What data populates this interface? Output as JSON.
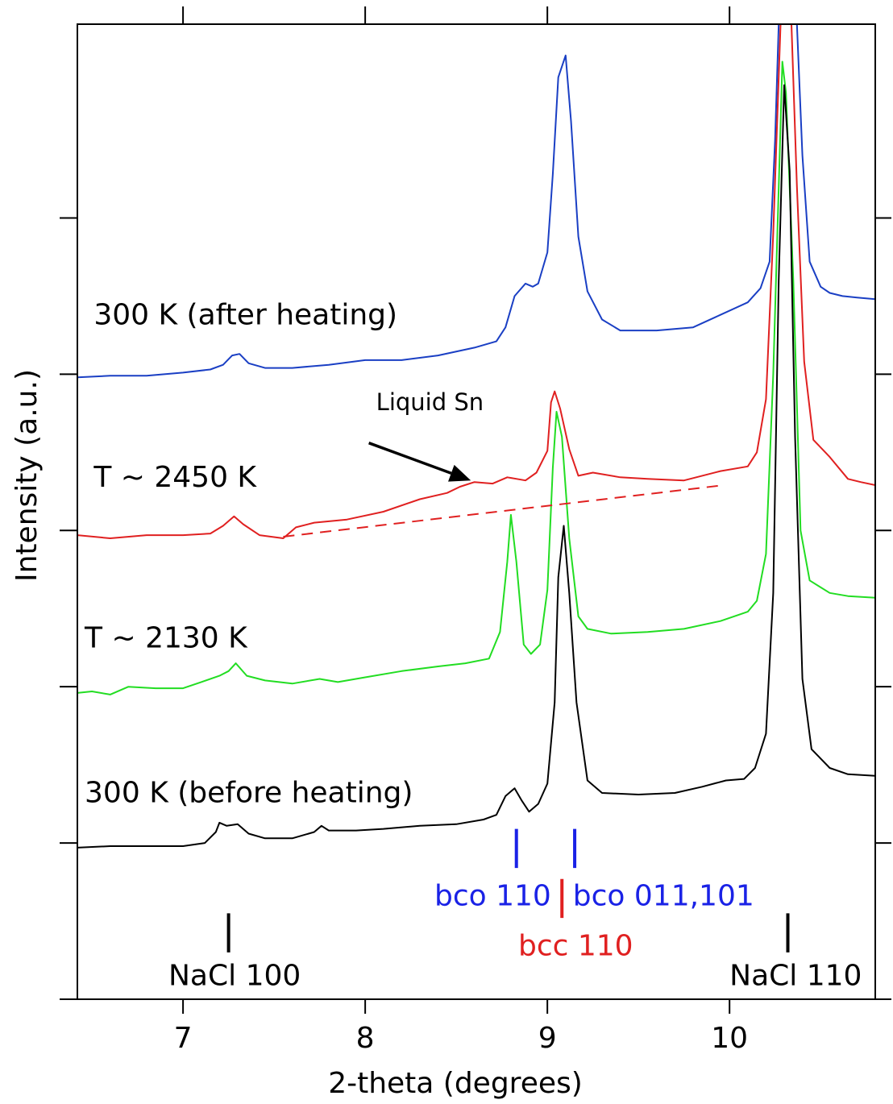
{
  "chart_data": {
    "type": "line",
    "xlabel": "2-theta (degrees)",
    "ylabel": "Intensity (a.u.)",
    "xlim": [
      6.42,
      10.8
    ],
    "ylim": [
      0,
      6.24
    ],
    "xticks": [
      7,
      8,
      9,
      10
    ],
    "yticks_unlabeled": [
      0,
      1,
      2,
      3,
      4,
      5
    ],
    "series": [
      {
        "name": "300 K (after heating)",
        "color": "#1a3fc4",
        "points": [
          [
            6.42,
            3.98
          ],
          [
            6.6,
            3.99
          ],
          [
            6.8,
            3.99
          ],
          [
            7.0,
            4.01
          ],
          [
            7.15,
            4.03
          ],
          [
            7.22,
            4.06
          ],
          [
            7.27,
            4.12
          ],
          [
            7.31,
            4.13
          ],
          [
            7.36,
            4.07
          ],
          [
            7.45,
            4.04
          ],
          [
            7.6,
            4.04
          ],
          [
            7.8,
            4.06
          ],
          [
            8.0,
            4.09
          ],
          [
            8.2,
            4.09
          ],
          [
            8.4,
            4.12
          ],
          [
            8.6,
            4.17
          ],
          [
            8.72,
            4.21
          ],
          [
            8.77,
            4.3
          ],
          [
            8.82,
            4.5
          ],
          [
            8.88,
            4.58
          ],
          [
            8.92,
            4.56
          ],
          [
            8.95,
            4.58
          ],
          [
            9.0,
            4.78
          ],
          [
            9.03,
            5.28
          ],
          [
            9.06,
            5.9
          ],
          [
            9.1,
            6.04
          ],
          [
            9.13,
            5.62
          ],
          [
            9.17,
            4.88
          ],
          [
            9.22,
            4.53
          ],
          [
            9.3,
            4.35
          ],
          [
            9.4,
            4.28
          ],
          [
            9.6,
            4.28
          ],
          [
            9.8,
            4.3
          ],
          [
            9.95,
            4.38
          ],
          [
            10.1,
            4.46
          ],
          [
            10.17,
            4.55
          ],
          [
            10.22,
            4.72
          ],
          [
            10.25,
            5.5
          ],
          [
            10.27,
            6.24
          ]
        ]
      },
      {
        "name": "300 K (after heating)",
        "color": "#1a3fc4",
        "points": [
          [
            10.37,
            6.24
          ],
          [
            10.4,
            5.4
          ],
          [
            10.44,
            4.72
          ],
          [
            10.5,
            4.56
          ],
          [
            10.55,
            4.52
          ],
          [
            10.62,
            4.5
          ],
          [
            10.7,
            4.49
          ],
          [
            10.8,
            4.48
          ]
        ]
      },
      {
        "name": "T ~ 2450 K",
        "color": "#e02020",
        "points": [
          [
            6.42,
            2.97
          ],
          [
            6.6,
            2.95
          ],
          [
            6.8,
            2.97
          ],
          [
            7.0,
            2.97
          ],
          [
            7.15,
            2.98
          ],
          [
            7.22,
            3.03
          ],
          [
            7.28,
            3.09
          ],
          [
            7.33,
            3.04
          ],
          [
            7.42,
            2.97
          ],
          [
            7.55,
            2.95
          ],
          [
            7.62,
            3.02
          ],
          [
            7.72,
            3.05
          ],
          [
            7.9,
            3.07
          ],
          [
            8.1,
            3.12
          ],
          [
            8.3,
            3.2
          ],
          [
            8.45,
            3.24
          ],
          [
            8.52,
            3.28
          ],
          [
            8.6,
            3.31
          ],
          [
            8.7,
            3.3
          ],
          [
            8.78,
            3.34
          ],
          [
            8.88,
            3.32
          ],
          [
            8.94,
            3.37
          ],
          [
            9.0,
            3.51
          ],
          [
            9.02,
            3.82
          ],
          [
            9.04,
            3.89
          ],
          [
            9.07,
            3.78
          ],
          [
            9.12,
            3.52
          ],
          [
            9.17,
            3.35
          ],
          [
            9.25,
            3.37
          ],
          [
            9.4,
            3.34
          ],
          [
            9.55,
            3.33
          ],
          [
            9.75,
            3.32
          ],
          [
            9.95,
            3.38
          ],
          [
            10.1,
            3.41
          ],
          [
            10.15,
            3.5
          ],
          [
            10.2,
            3.84
          ],
          [
            10.24,
            4.9
          ],
          [
            10.28,
            6.24
          ]
        ]
      },
      {
        "name": "T ~ 2450 K",
        "color": "#e02020",
        "points": [
          [
            10.34,
            6.24
          ],
          [
            10.37,
            5.2
          ],
          [
            10.41,
            4.08
          ],
          [
            10.46,
            3.58
          ],
          [
            10.55,
            3.47
          ],
          [
            10.65,
            3.33
          ],
          [
            10.72,
            3.31
          ],
          [
            10.8,
            3.29
          ]
        ]
      },
      {
        "name": "T ~ 2130 K",
        "color": "#22dd22",
        "points": [
          [
            6.42,
            1.96
          ],
          [
            6.5,
            1.97
          ],
          [
            6.6,
            1.95
          ],
          [
            6.7,
            2.0
          ],
          [
            6.85,
            1.99
          ],
          [
            7.0,
            1.99
          ],
          [
            7.1,
            2.03
          ],
          [
            7.2,
            2.07
          ],
          [
            7.25,
            2.1
          ],
          [
            7.29,
            2.15
          ],
          [
            7.35,
            2.07
          ],
          [
            7.45,
            2.04
          ],
          [
            7.6,
            2.02
          ],
          [
            7.75,
            2.05
          ],
          [
            7.85,
            2.03
          ],
          [
            8.0,
            2.06
          ],
          [
            8.2,
            2.1
          ],
          [
            8.4,
            2.13
          ],
          [
            8.55,
            2.15
          ],
          [
            8.68,
            2.18
          ],
          [
            8.74,
            2.35
          ],
          [
            8.78,
            2.8
          ],
          [
            8.8,
            3.1
          ],
          [
            8.83,
            2.8
          ],
          [
            8.87,
            2.27
          ],
          [
            8.91,
            2.21
          ],
          [
            8.96,
            2.27
          ],
          [
            9.0,
            2.62
          ],
          [
            9.03,
            3.4
          ],
          [
            9.05,
            3.76
          ],
          [
            9.08,
            3.6
          ],
          [
            9.12,
            2.95
          ],
          [
            9.17,
            2.45
          ],
          [
            9.22,
            2.37
          ],
          [
            9.35,
            2.34
          ],
          [
            9.55,
            2.35
          ],
          [
            9.75,
            2.37
          ],
          [
            9.95,
            2.42
          ],
          [
            10.1,
            2.48
          ],
          [
            10.15,
            2.55
          ],
          [
            10.2,
            2.85
          ],
          [
            10.24,
            4.0
          ],
          [
            10.28,
            5.6
          ],
          [
            10.29,
            6.0
          ],
          [
            10.31,
            5.8
          ],
          [
            10.35,
            4.6
          ],
          [
            10.39,
            3.0
          ],
          [
            10.44,
            2.68
          ],
          [
            10.55,
            2.6
          ],
          [
            10.65,
            2.58
          ],
          [
            10.8,
            2.57
          ]
        ]
      },
      {
        "name": "300 K (before heating)",
        "color": "#000000",
        "points": [
          [
            6.42,
            0.97
          ],
          [
            6.6,
            0.98
          ],
          [
            6.8,
            0.98
          ],
          [
            7.0,
            0.98
          ],
          [
            7.12,
            1.0
          ],
          [
            7.18,
            1.07
          ],
          [
            7.2,
            1.13
          ],
          [
            7.24,
            1.11
          ],
          [
            7.3,
            1.12
          ],
          [
            7.36,
            1.06
          ],
          [
            7.45,
            1.03
          ],
          [
            7.6,
            1.03
          ],
          [
            7.72,
            1.07
          ],
          [
            7.76,
            1.11
          ],
          [
            7.8,
            1.08
          ],
          [
            7.95,
            1.08
          ],
          [
            8.1,
            1.09
          ],
          [
            8.3,
            1.11
          ],
          [
            8.5,
            1.12
          ],
          [
            8.65,
            1.15
          ],
          [
            8.72,
            1.18
          ],
          [
            8.77,
            1.3
          ],
          [
            8.82,
            1.35
          ],
          [
            8.86,
            1.27
          ],
          [
            8.9,
            1.2
          ],
          [
            8.95,
            1.25
          ],
          [
            9.0,
            1.38
          ],
          [
            9.04,
            1.9
          ],
          [
            9.06,
            2.7
          ],
          [
            9.09,
            3.03
          ],
          [
            9.12,
            2.6
          ],
          [
            9.16,
            1.9
          ],
          [
            9.22,
            1.4
          ],
          [
            9.3,
            1.32
          ],
          [
            9.5,
            1.31
          ],
          [
            9.7,
            1.32
          ],
          [
            9.85,
            1.36
          ],
          [
            9.98,
            1.4
          ],
          [
            10.08,
            1.41
          ],
          [
            10.14,
            1.48
          ],
          [
            10.2,
            1.7
          ],
          [
            10.24,
            2.6
          ],
          [
            10.27,
            4.6
          ],
          [
            10.3,
            5.85
          ],
          [
            10.33,
            5.3
          ],
          [
            10.36,
            3.6
          ],
          [
            10.4,
            2.05
          ],
          [
            10.45,
            1.6
          ],
          [
            10.55,
            1.48
          ],
          [
            10.65,
            1.44
          ],
          [
            10.8,
            1.43
          ]
        ]
      }
    ],
    "baseline": {
      "name": "Liquid Sn",
      "color": "#e02020",
      "style": "dashed",
      "points": [
        [
          7.55,
          2.96
        ],
        [
          9.97,
          3.29
        ]
      ]
    },
    "reference_ticks": [
      {
        "x": 7.25,
        "color": "#000000",
        "label": "NaCl 100",
        "level": 0.3,
        "len": 0.25
      },
      {
        "x": 10.32,
        "color": "#000000",
        "label": "NaCl 110",
        "level": 0.3,
        "len": 0.25
      },
      {
        "x": 9.08,
        "color": "#e02020",
        "label": "bcc 110",
        "level": 0.52,
        "len": 0.25
      },
      {
        "x": 8.83,
        "color": "#1a22e6",
        "label": "bco 110",
        "level": 0.84,
        "len": 0.25
      },
      {
        "x": 9.15,
        "color": "#1a22e6",
        "label": "bco 011,101",
        "level": 0.84,
        "len": 0.25
      }
    ],
    "annotations": [
      {
        "text": "300 K (after heating)",
        "x": 6.51,
        "y": 4.32,
        "color": "#000000"
      },
      {
        "text": "T ~ 2450 K",
        "x": 6.51,
        "y": 3.28,
        "color": "#000000"
      },
      {
        "text": "T ~ 2130 K",
        "x": 6.46,
        "y": 2.25,
        "color": "#000000"
      },
      {
        "text": "300 K (before heating)",
        "x": 6.46,
        "y": 1.26,
        "color": "#000000"
      },
      {
        "text": "Liquid Sn",
        "x": 8.06,
        "y": 3.77,
        "color": "#000000"
      },
      {
        "text": "bco 110",
        "x": 8.38,
        "y": 0.6,
        "color": "#1a22e6"
      },
      {
        "text": "bco 011,101",
        "x": 9.14,
        "y": 0.6,
        "color": "#1a22e6"
      },
      {
        "text": "bcc 110",
        "x": 8.84,
        "y": 0.28,
        "color": "#e02020"
      },
      {
        "text": "NaCl 100",
        "x": 6.92,
        "y": 0.09,
        "color": "#000000"
      },
      {
        "text": "NaCl 110",
        "x": 10.0,
        "y": 0.09,
        "color": "#000000"
      }
    ],
    "arrow": {
      "from": [
        8.02,
        3.56
      ],
      "to": [
        8.58,
        3.32
      ],
      "color": "#000000"
    },
    "grid": false,
    "legend": "none"
  }
}
